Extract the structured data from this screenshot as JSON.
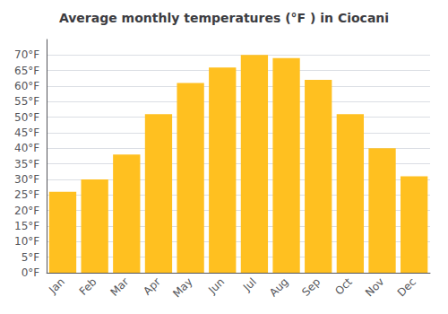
{
  "chart_data": {
    "type": "bar",
    "title": "Average monthly temperatures (°F ) in Ciocani",
    "categories": [
      "Jan",
      "Feb",
      "Mar",
      "Apr",
      "May",
      "Jun",
      "Jul",
      "Aug",
      "Sep",
      "Oct",
      "Nov",
      "Dec"
    ],
    "values": [
      26,
      30,
      38,
      51,
      61,
      66,
      70,
      69,
      62,
      51,
      40,
      31
    ],
    "color": "#FFC020",
    "ylim": [
      0,
      75
    ],
    "yticks": [
      {
        "value": 0,
        "label": "0°F"
      },
      {
        "value": 5,
        "label": "5°F"
      },
      {
        "value": 10,
        "label": "10°F"
      },
      {
        "value": 15,
        "label": "15°F"
      },
      {
        "value": 20,
        "label": "20°F"
      },
      {
        "value": 25,
        "label": "25°F"
      },
      {
        "value": 30,
        "label": "30°F"
      },
      {
        "value": 35,
        "label": "35°F"
      },
      {
        "value": 40,
        "label": "40°F"
      },
      {
        "value": 45,
        "label": "45°F"
      },
      {
        "value": 50,
        "label": "50°F"
      },
      {
        "value": 55,
        "label": "55°F"
      },
      {
        "value": 60,
        "label": "60°F"
      },
      {
        "value": 65,
        "label": "65°F"
      },
      {
        "value": 70,
        "label": "70°F"
      }
    ],
    "grid": true
  }
}
